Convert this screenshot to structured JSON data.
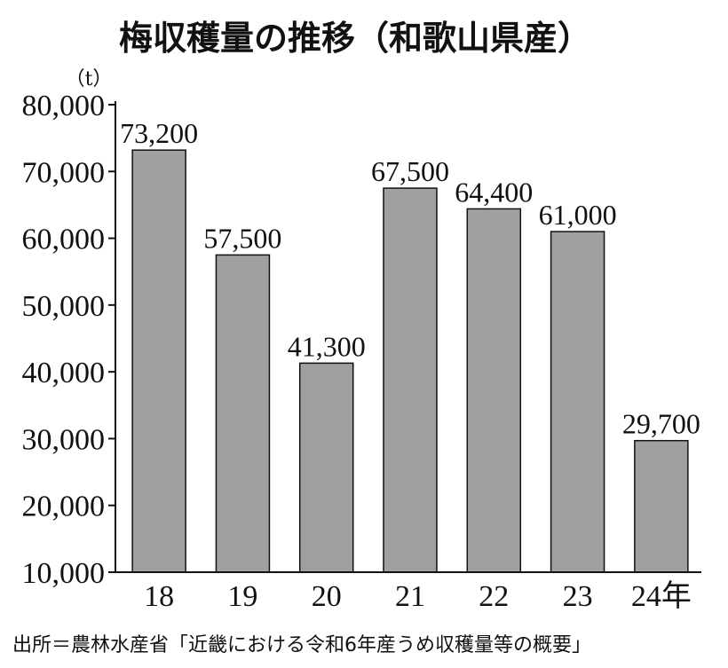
{
  "chart_data": {
    "type": "bar",
    "title": "梅収穫量の推移（和歌山県産）",
    "unit_label": "（t）",
    "categories": [
      "18",
      "19",
      "20",
      "21",
      "22",
      "23",
      "24年"
    ],
    "values": [
      73200,
      57500,
      41300,
      67500,
      64400,
      61000,
      29700
    ],
    "value_labels": [
      "73,200",
      "57,500",
      "41,300",
      "67,500",
      "64,400",
      "61,000",
      "29,700"
    ],
    "yticks": [
      "10,000",
      "20,000",
      "30,000",
      "40,000",
      "50,000",
      "60,000",
      "70,000",
      "80,000"
    ],
    "ytick_values": [
      10000,
      20000,
      30000,
      40000,
      50000,
      60000,
      70000,
      80000
    ],
    "ylim": [
      10000,
      80000
    ],
    "grid": false,
    "bar_color": "#a0a0a0",
    "source": "出所＝農林水産省「近畿における令和6年産うめ収穫量等の概要」"
  }
}
